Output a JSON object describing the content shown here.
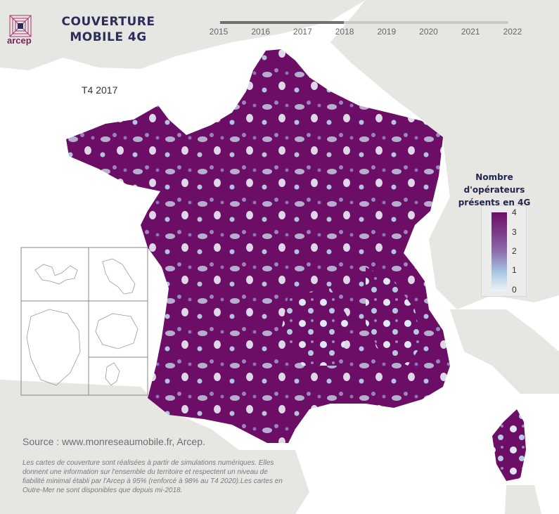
{
  "header": {
    "logo_text": "arcep",
    "title_line1": "COUVERTURE",
    "title_line2": "MOBILE 4G"
  },
  "timeline": {
    "years": [
      "2015",
      "2016",
      "2017",
      "2018",
      "2019",
      "2020",
      "2021",
      "2022"
    ],
    "selected_period": "T4 2017",
    "progress_fraction": 0.43
  },
  "legend": {
    "title_line1": "Nombre d'opérateurs",
    "title_line2": "présents en 4G",
    "ticks": [
      "4",
      "3",
      "2",
      "1",
      "0"
    ],
    "colors": {
      "max": "#6c0e66",
      "mid": "#8d6fb0",
      "low": "#a4c4e0",
      "none": "#eef4fa"
    }
  },
  "footer": {
    "source": "Source : www.monreseaumobile.fr, Arcep.",
    "note": "Les cartes de couverture sont réalisées à partir de simulations numériques. Elles donnent une information sur l'ensemble du territoire et respectent un niveau de fiabilité minimal établi par l'Arcep à 95% (renforcé à 98% au T4 2020).Les cartes en Outre-Mer ne sont disponibles que depuis mi-2018."
  },
  "colors": {
    "coverage": "#6c0e66",
    "sea": "#ffffff",
    "neighbours": "#e6e6e3",
    "title": "#2b2e5a"
  }
}
